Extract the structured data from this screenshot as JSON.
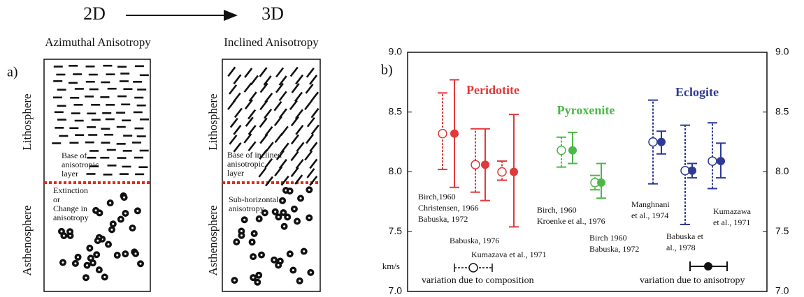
{
  "diagram": {
    "title_from": "2D",
    "title_to": "3D",
    "panel_label": "a)",
    "left": {
      "title": "Azimuthal Anisotropy",
      "upper": "Lithosphere",
      "lower": "Asthenosphere",
      "base_note": [
        "Base of",
        "anisotropic",
        "layer"
      ],
      "lower_note": [
        "Extinction",
        "or",
        "Change in",
        "anisotropy"
      ]
    },
    "right": {
      "title": "Inclined Anisotropy",
      "upper": "Lithosphere",
      "lower": "Asthenosphere",
      "base_note": [
        "Base of inclined",
        "anisotropic",
        "layer"
      ],
      "lower_note": [
        "Sub-horizontal",
        "anisotropy"
      ]
    }
  },
  "chart_data": {
    "type": "errorbar",
    "panel_label": "b)",
    "ylabel": "km/s",
    "ylim": [
      7,
      9
    ],
    "yticks": [
      {
        "value": 7,
        "label": "7.0"
      },
      {
        "value": 7.5,
        "label": "7.5"
      },
      {
        "value": 8,
        "label": "8.0"
      },
      {
        "value": 8.5,
        "label": "8.5"
      },
      {
        "value": 9,
        "label": "9.0"
      }
    ],
    "y2lim": [
      7,
      9
    ],
    "y2ticks": [
      {
        "value": 7,
        "label": "7.0"
      },
      {
        "value": 7.5,
        "label": "7.5"
      },
      {
        "value": 8,
        "label": "8.0"
      },
      {
        "value": 8.5,
        "label": "8.5"
      },
      {
        "value": 9,
        "label": "9.0"
      }
    ],
    "legend": [
      "variation due to composition",
      "variation due to anisotropy"
    ],
    "groups": [
      {
        "name": "Peridotite",
        "color": "#e0393a",
        "points": [
          {
            "composition": {
              "value": 8.32,
              "low": 8.02,
              "high": 8.66
            },
            "anisotropy": {
              "value": 8.32,
              "low": 7.87,
              "high": 8.77
            }
          },
          {
            "composition": {
              "value": 8.06,
              "low": 7.83,
              "high": 8.36
            },
            "anisotropy": {
              "value": 8.06,
              "low": 7.76,
              "high": 8.36
            }
          },
          {
            "composition": {
              "value": 8.0,
              "low": 7.93,
              "high": 8.09
            },
            "anisotropy": {
              "value": 8.0,
              "low": 7.54,
              "high": 8.48
            }
          }
        ]
      },
      {
        "name": "Pyroxenite",
        "color": "#4cb848",
        "points": [
          {
            "composition": {
              "value": 8.18,
              "low": 8.04,
              "high": 8.29
            },
            "anisotropy": {
              "value": 8.18,
              "low": 8.07,
              "high": 8.33
            }
          },
          {
            "composition": {
              "value": 7.91,
              "low": 7.85,
              "high": 7.97
            },
            "anisotropy": {
              "value": 7.91,
              "low": 7.78,
              "high": 8.07
            }
          }
        ]
      },
      {
        "name": "Eclogite",
        "color": "#2e3a94",
        "points": [
          {
            "composition": {
              "value": 8.25,
              "low": 7.9,
              "high": 8.6
            },
            "anisotropy": {
              "value": 8.25,
              "low": 8.15,
              "high": 8.34
            }
          },
          {
            "composition": {
              "value": 8.01,
              "low": 7.56,
              "high": 8.39
            },
            "anisotropy": {
              "value": 8.01,
              "low": 7.95,
              "high": 8.07
            }
          },
          {
            "composition": {
              "value": 8.09,
              "low": 7.86,
              "high": 8.41
            },
            "anisotropy": {
              "value": 8.09,
              "low": 7.95,
              "high": 8.24
            }
          }
        ]
      }
    ],
    "annotations": [
      [
        "Birch,1960",
        "Christensen, 1966",
        "Babuska, 1972"
      ],
      [
        "Babuska, 1976"
      ],
      [
        "Kumazava et al., 1971"
      ],
      [
        "Birch, 1960",
        "Kroenke et al., 1976"
      ],
      [
        "Birch 1960",
        "Babuska, 1972"
      ],
      [
        "Manghnani",
        "et al., 1974"
      ],
      [
        "Babuska et",
        "al., 1978"
      ],
      [
        "Kumazawa",
        "et al., 1971"
      ]
    ]
  }
}
